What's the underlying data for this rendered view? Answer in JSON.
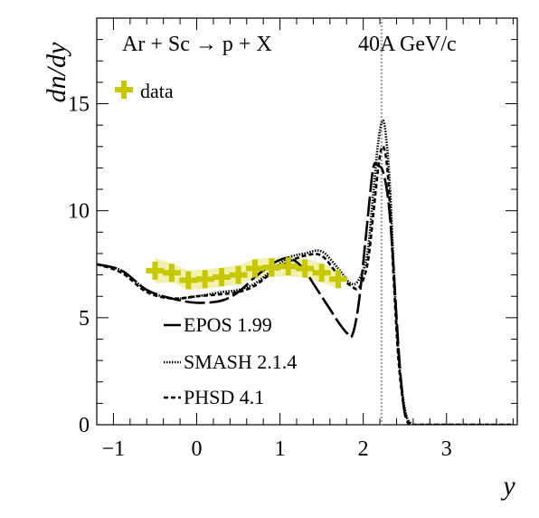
{
  "chart_data": {
    "type": "line",
    "title": "",
    "xlabel": "y",
    "ylabel": "dn/dy",
    "xlim": [
      -1.2,
      3.85
    ],
    "ylim": [
      0,
      19
    ],
    "grid": false,
    "legend_placement": "bottom-left",
    "x_ticks": [
      -1,
      0,
      1,
      2,
      3
    ],
    "x_tick_labels": [
      "−1",
      "0",
      "1",
      "2",
      "3"
    ],
    "y_ticks": [
      0,
      5,
      10,
      15
    ],
    "y_tick_labels": [
      "0",
      "5",
      "10",
      "15"
    ],
    "annotations": {
      "reaction": "Ar + Sc → p + X",
      "energy": "40A GeV/c"
    },
    "beam_rapidity_line": {
      "x": 2.22
    },
    "data_series": {
      "name": "data",
      "color": "#c8c800",
      "band_color": "#f0f0b0",
      "x": [
        -0.5,
        -0.3,
        -0.1,
        0.1,
        0.3,
        0.5,
        0.7,
        0.9,
        1.1,
        1.3,
        1.5,
        1.7
      ],
      "y": [
        7.2,
        7.1,
        6.75,
        6.8,
        6.9,
        7.0,
        7.3,
        7.35,
        7.4,
        7.3,
        7.1,
        6.8
      ]
    },
    "series": [
      {
        "name": "EPOS 1.99",
        "style": "long-dash",
        "x": [
          -1.2,
          -0.9,
          -0.6,
          -0.3,
          0.0,
          0.3,
          0.5,
          0.7,
          0.9,
          1.0,
          1.1,
          1.2,
          1.3,
          1.4,
          1.5,
          1.6,
          1.7,
          1.8,
          1.87,
          1.95,
          2.05,
          2.12,
          2.18,
          2.24,
          2.3,
          2.35,
          2.4,
          2.45,
          2.5,
          2.55
        ],
        "y": [
          7.5,
          7.2,
          6.3,
          5.9,
          5.7,
          5.8,
          6.2,
          6.9,
          7.5,
          7.7,
          7.8,
          7.6,
          7.2,
          6.6,
          6.0,
          5.4,
          4.8,
          4.3,
          4.2,
          5.8,
          9.5,
          12.0,
          12.1,
          11.8,
          10.5,
          8.2,
          5.0,
          2.2,
          0.5,
          0.0
        ]
      },
      {
        "name": "SMASH 2.1.4",
        "style": "dotted",
        "x": [
          -1.2,
          -0.9,
          -0.6,
          -0.3,
          0.0,
          0.3,
          0.5,
          0.7,
          0.9,
          1.1,
          1.3,
          1.5,
          1.7,
          1.85,
          1.95,
          2.05,
          2.12,
          2.18,
          2.23,
          2.27,
          2.32,
          2.37,
          2.42,
          2.47,
          2.52,
          2.58,
          2.65,
          2.8,
          3.8
        ],
        "y": [
          7.5,
          7.2,
          6.3,
          5.9,
          6.0,
          6.2,
          6.3,
          6.6,
          7.2,
          7.8,
          8.0,
          8.1,
          7.3,
          6.6,
          6.8,
          8.0,
          10.8,
          13.2,
          14.2,
          13.6,
          11.2,
          7.0,
          3.5,
          1.5,
          0.4,
          0.05,
          0.0,
          0.0,
          0.0
        ]
      },
      {
        "name": "PHSD 4.1",
        "style": "short-dash",
        "x": [
          -1.2,
          -0.9,
          -0.6,
          -0.3,
          0.0,
          0.3,
          0.5,
          0.7,
          0.9,
          1.1,
          1.3,
          1.5,
          1.7,
          1.85,
          1.95,
          2.05,
          2.12,
          2.18,
          2.23,
          2.28,
          2.32,
          2.37,
          2.42,
          2.47,
          2.52,
          2.58,
          2.65,
          2.8,
          3.8
        ],
        "y": [
          7.5,
          7.1,
          6.2,
          5.9,
          6.0,
          6.1,
          6.2,
          6.5,
          7.1,
          7.6,
          7.9,
          7.9,
          7.0,
          6.5,
          6.4,
          7.5,
          9.8,
          12.0,
          13.0,
          12.3,
          10.2,
          6.5,
          3.2,
          1.3,
          0.3,
          0.0,
          0.0,
          0.0,
          0.0
        ]
      }
    ]
  }
}
